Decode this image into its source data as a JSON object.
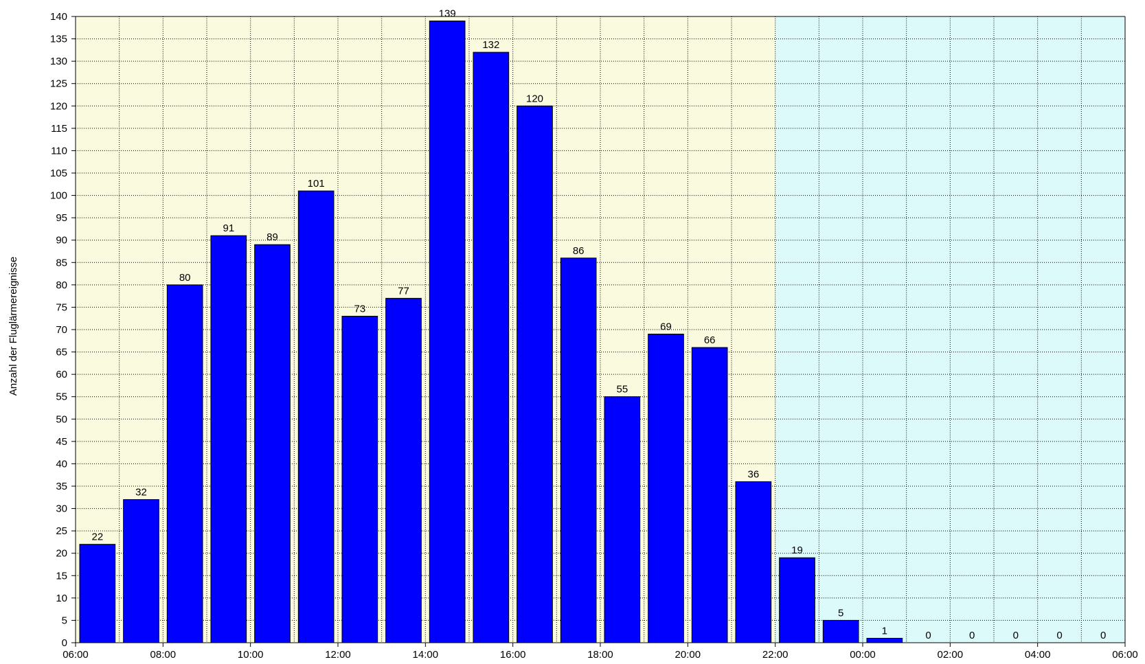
{
  "chart_data": {
    "type": "bar",
    "title": "",
    "xlabel": "",
    "ylabel": "Anzahl der Fluglärmereignisse",
    "ylim": [
      0,
      140
    ],
    "yticks": [
      0,
      5,
      10,
      15,
      20,
      25,
      30,
      35,
      40,
      45,
      50,
      55,
      60,
      65,
      70,
      75,
      80,
      85,
      90,
      95,
      100,
      105,
      110,
      115,
      120,
      125,
      130,
      135,
      140
    ],
    "xtick_labels": [
      "06:00",
      "08:00",
      "10:00",
      "12:00",
      "14:00",
      "16:00",
      "18:00",
      "20:00",
      "22:00",
      "00:00",
      "02:00",
      "04:00",
      "06:00"
    ],
    "categories": [
      "06:00",
      "07:00",
      "08:00",
      "09:00",
      "10:00",
      "11:00",
      "12:00",
      "13:00",
      "14:00",
      "15:00",
      "16:00",
      "17:00",
      "18:00",
      "19:00",
      "20:00",
      "21:00",
      "22:00",
      "23:00",
      "00:00",
      "01:00",
      "02:00",
      "03:00",
      "04:00",
      "05:00"
    ],
    "values": [
      22,
      32,
      80,
      91,
      89,
      101,
      73,
      77,
      139,
      132,
      120,
      86,
      55,
      69,
      66,
      36,
      19,
      5,
      1,
      0,
      0,
      0,
      0,
      0
    ],
    "grid": true,
    "bar_color": "#0000ff",
    "day_background": "#fafade",
    "night_background": "#dcfafa",
    "night_start_index": 16
  }
}
